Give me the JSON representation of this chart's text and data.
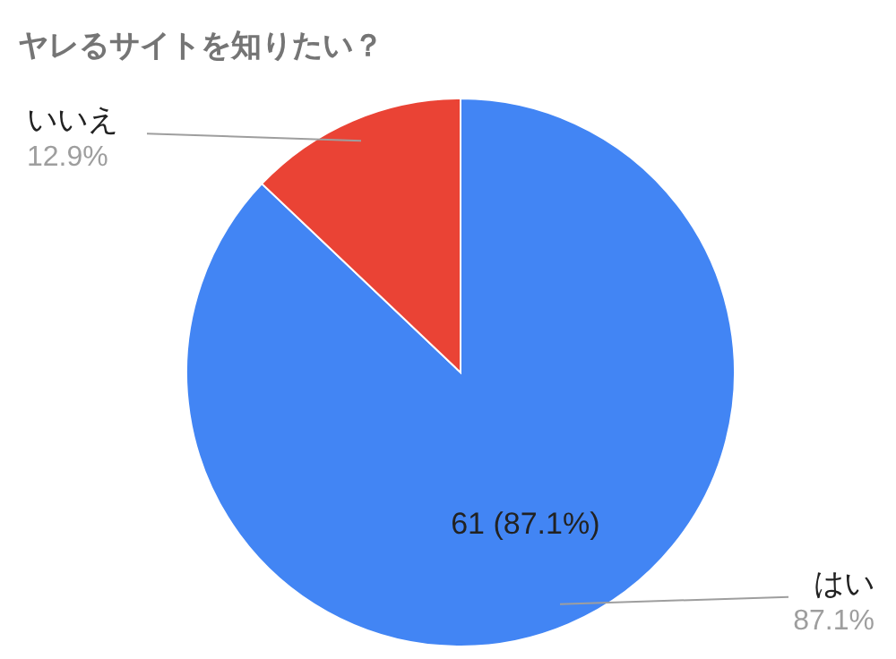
{
  "chart_data": {
    "type": "pie",
    "title": "ヤレるサイトを知りたい？",
    "categories": [
      "はい",
      "いいえ"
    ],
    "values": [
      87.1,
      12.9
    ],
    "colors": [
      "#4285f4",
      "#ea4335"
    ],
    "value_labels": [
      "61 (87.1%)",
      null
    ],
    "annotations": [
      "87.1%",
      "12.9%"
    ]
  }
}
